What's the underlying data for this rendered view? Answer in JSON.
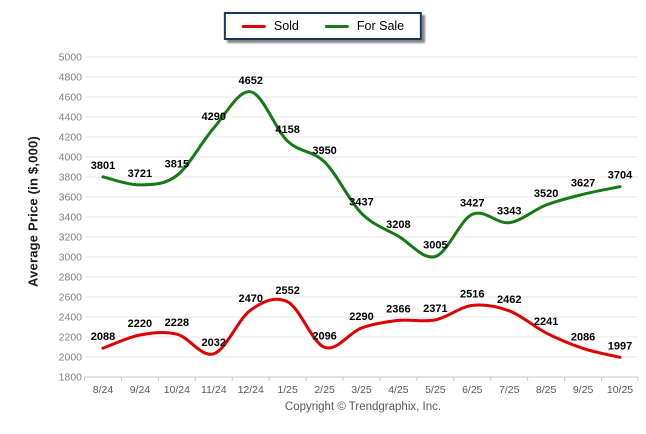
{
  "chart_data": {
    "type": "line",
    "title": "",
    "categories": [
      "8/24",
      "9/24",
      "10/24",
      "11/24",
      "12/24",
      "1/25",
      "2/25",
      "3/25",
      "4/25",
      "5/25",
      "6/25",
      "7/25",
      "8/25",
      "9/25",
      "10/25"
    ],
    "series": [
      {
        "name": "Sold",
        "color": "#e00000",
        "values": [
          2088,
          2220,
          2228,
          2032,
          2470,
          2552,
          2096,
          2290,
          2366,
          2371,
          2516,
          2462,
          2241,
          2086,
          1997
        ]
      },
      {
        "name": "For Sale",
        "color": "#177a17",
        "values": [
          3801,
          3721,
          3815,
          4290,
          4652,
          4158,
          3950,
          3437,
          3208,
          3005,
          3427,
          3343,
          3520,
          3627,
          3704
        ]
      }
    ],
    "xlabel": "",
    "ylabel": "Average Price (in $,000)",
    "ylim": [
      1800,
      5000
    ],
    "ytick_step": 200,
    "grid": true,
    "smooth": true,
    "legend_position": "top-center",
    "data_labels": true
  },
  "footer": {
    "copyright": "Copyright © Trendgraphix, Inc."
  },
  "colors": {
    "sold_line": "#e00000",
    "for_sale_line": "#177a17",
    "legend_border": "#17375e",
    "gridline": "#e9e9e9",
    "axis": "#c8c8c8",
    "y_tick_text": "#7f7f7f",
    "x_tick_text": "#595959",
    "data_label_text": "#000000"
  }
}
